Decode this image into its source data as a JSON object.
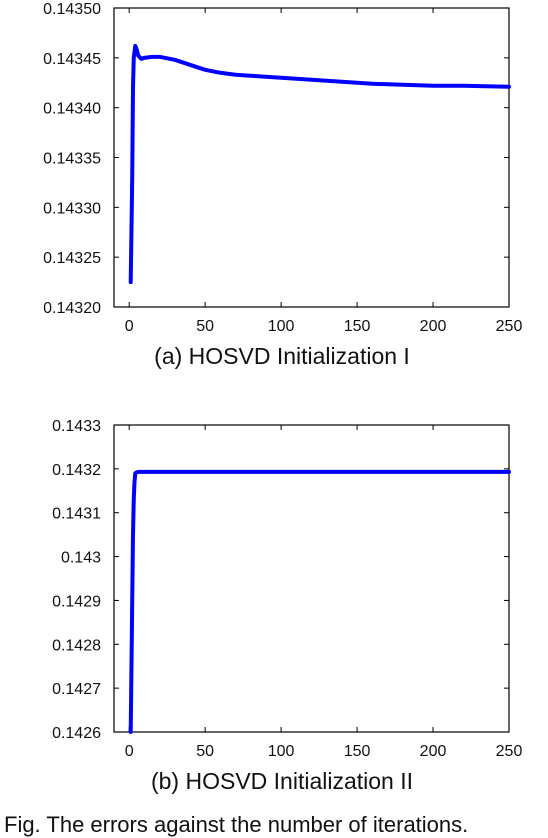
{
  "chart_data": [
    {
      "type": "line",
      "caption": "(a) HOSVD Initialization I",
      "xlim": [
        -10,
        250
      ],
      "ylim": [
        0.1432,
        0.1435
      ],
      "xticks": [
        "0",
        "50",
        "100",
        "150",
        "200",
        "250"
      ],
      "xtick_values": [
        0,
        50,
        100,
        150,
        200,
        250
      ],
      "yticks": [
        "0.14320",
        "0.14325",
        "0.14330",
        "0.14335",
        "0.14340",
        "0.14345",
        "0.14350"
      ],
      "ytick_values": [
        0.1432,
        0.14325,
        0.1433,
        0.14335,
        0.1434,
        0.14345,
        0.1435
      ],
      "grid": false,
      "color": "#0000ff",
      "series": [
        {
          "x": [
            1,
            2,
            2.5,
            3,
            4,
            5,
            6,
            8,
            10,
            15,
            20,
            30,
            40,
            50,
            60,
            70,
            80,
            100,
            120,
            140,
            160,
            180,
            200,
            220,
            250
          ],
          "y": [
            0.143225,
            0.14333,
            0.14342,
            0.14345,
            0.143462,
            0.143458,
            0.143452,
            0.143449,
            0.14345,
            0.143451,
            0.143451,
            0.143448,
            0.143443,
            0.143438,
            0.143435,
            0.143433,
            0.143432,
            0.14343,
            0.143428,
            0.143426,
            0.143424,
            0.143423,
            0.143422,
            0.143422,
            0.143421
          ]
        }
      ]
    },
    {
      "type": "line",
      "caption": "(b) HOSVD Initialization II",
      "xlim": [
        -10,
        250
      ],
      "ylim": [
        0.1426,
        0.1433
      ],
      "xticks": [
        "0",
        "50",
        "100",
        "150",
        "200",
        "250"
      ],
      "xtick_values": [
        0,
        50,
        100,
        150,
        200,
        250
      ],
      "yticks": [
        "0.1426",
        "0.1427",
        "0.1428",
        "0.1429",
        "0.143",
        "0.1431",
        "0.1432",
        "0.1433"
      ],
      "ytick_values": [
        0.1426,
        0.1427,
        0.1428,
        0.1429,
        0.143,
        0.1431,
        0.1432,
        0.1433
      ],
      "grid": false,
      "color": "#0000ff",
      "series": [
        {
          "x": [
            1,
            1.5,
            2,
            2.5,
            3,
            3.5,
            4,
            5,
            6,
            8,
            10,
            20,
            50,
            100,
            150,
            200,
            250
          ],
          "y": [
            0.1426,
            0.14275,
            0.1429,
            0.14305,
            0.14313,
            0.14317,
            0.14319,
            0.143192,
            0.143193,
            0.143193,
            0.143193,
            0.143193,
            0.143193,
            0.143193,
            0.143193,
            0.143193,
            0.143193
          ]
        }
      ]
    }
  ],
  "figure_caption": "Fig. The errors against the number of iterations."
}
